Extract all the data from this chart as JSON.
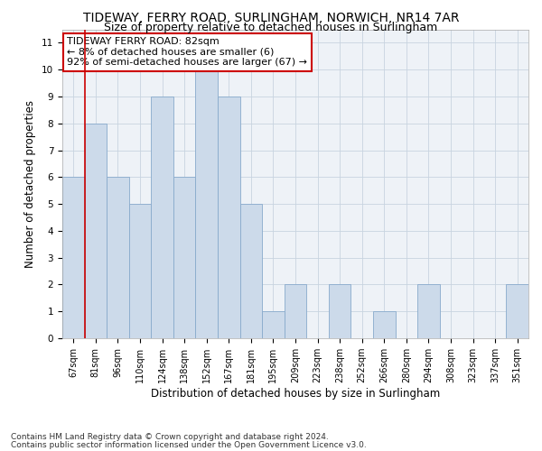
{
  "title": "TIDEWAY, FERRY ROAD, SURLINGHAM, NORWICH, NR14 7AR",
  "subtitle": "Size of property relative to detached houses in Surlingham",
  "xlabel": "Distribution of detached houses by size in Surlingham",
  "ylabel": "Number of detached properties",
  "categories": [
    "67sqm",
    "81sqm",
    "96sqm",
    "110sqm",
    "124sqm",
    "138sqm",
    "152sqm",
    "167sqm",
    "181sqm",
    "195sqm",
    "209sqm",
    "223sqm",
    "238sqm",
    "252sqm",
    "266sqm",
    "280sqm",
    "294sqm",
    "308sqm",
    "323sqm",
    "337sqm",
    "351sqm"
  ],
  "values": [
    6,
    8,
    6,
    5,
    9,
    6,
    10,
    9,
    5,
    1,
    2,
    0,
    2,
    0,
    1,
    0,
    2,
    0,
    0,
    0,
    2
  ],
  "bar_color": "#ccdaea",
  "bar_edge_color": "#88aacc",
  "vline_index": 1,
  "vline_color": "#cc0000",
  "annotation_title": "TIDEWAY FERRY ROAD: 82sqm",
  "annotation_line1": "← 8% of detached houses are smaller (6)",
  "annotation_line2": "92% of semi-detached houses are larger (67) →",
  "annotation_box_color": "#ffffff",
  "annotation_box_edge_color": "#cc0000",
  "ylim": [
    0,
    11.5
  ],
  "yticks": [
    0,
    1,
    2,
    3,
    4,
    5,
    6,
    7,
    8,
    9,
    10,
    11
  ],
  "footnote1": "Contains HM Land Registry data © Crown copyright and database right 2024.",
  "footnote2": "Contains public sector information licensed under the Open Government Licence v3.0.",
  "bg_color": "#eef2f7",
  "grid_color": "#c8d4e0",
  "title_fontsize": 10,
  "subtitle_fontsize": 9,
  "axis_label_fontsize": 8.5,
  "tick_fontsize": 7,
  "annotation_fontsize": 8,
  "footnote_fontsize": 6.5
}
